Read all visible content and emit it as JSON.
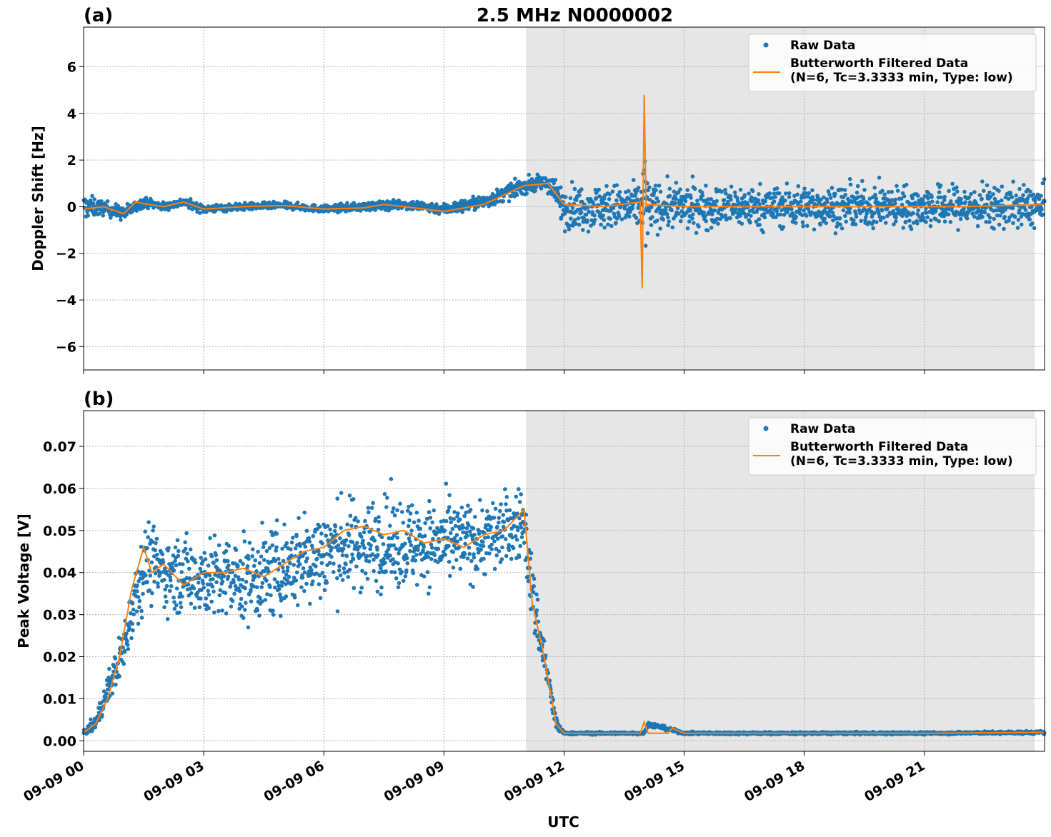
{
  "colors": {
    "raw": "#1f77b4",
    "filtered": "#ff7f0e",
    "shade": "#e6e6e6",
    "grid": "#b0b0b0"
  },
  "xlabel": "UTC",
  "x_range_hours": [
    0,
    24
  ],
  "x_ticks": [
    {
      "hour": 0,
      "label": "09-09 00"
    },
    {
      "hour": 3,
      "label": "09-09 03"
    },
    {
      "hour": 6,
      "label": "09-09 06"
    },
    {
      "hour": 9,
      "label": "09-09 09"
    },
    {
      "hour": 12,
      "label": "09-09 12"
    },
    {
      "hour": 15,
      "label": "09-09 15"
    },
    {
      "hour": 18,
      "label": "09-09 18"
    },
    {
      "hour": 21,
      "label": "09-09 21"
    }
  ],
  "chart_data": [
    {
      "panel_label": "(a)",
      "title": "2.5 MHz N0000002",
      "type": "scatter",
      "ylabel": "Doppler Shift [Hz]",
      "ylim": [
        -7.0,
        7.7
      ],
      "y_ticks": [
        {
          "value": 6,
          "label": "6"
        },
        {
          "value": 4,
          "label": "4"
        },
        {
          "value": 2,
          "label": "2"
        },
        {
          "value": 0,
          "label": "0"
        },
        {
          "value": -2,
          "label": "−2"
        },
        {
          "value": -4,
          "label": "−4"
        },
        {
          "value": -6,
          "label": "−6"
        }
      ],
      "shaded_region_hours": [
        11.05,
        23.75
      ],
      "grid": true,
      "legend_position": "top-right",
      "legend": [
        "Raw Data",
        "Butterworth Filtered Data\n(N=6, Tc=3.3333 min, Type: low)"
      ],
      "series": [
        {
          "name": "Raw Data",
          "style": "points",
          "x_hours": [
            0,
            0.5,
            1.0,
            1.5,
            2.0,
            2.5,
            3.0,
            4.0,
            5.0,
            6.0,
            7.0,
            8.0,
            9.0,
            10.0,
            11.0,
            11.6,
            12.0,
            13.0,
            13.9,
            14.0,
            14.1,
            15.0,
            16.0,
            18.0,
            20.0,
            22.0,
            24.0
          ],
          "y_center": [
            0,
            -0.05,
            -0.3,
            0.2,
            0.0,
            0.2,
            -0.1,
            0.0,
            0.05,
            -0.1,
            0.0,
            0.1,
            -0.1,
            0.2,
            0.9,
            1.0,
            0.0,
            0.0,
            0.0,
            0.0,
            0.0,
            0.0,
            0.0,
            0.0,
            0.0,
            0.0,
            0.0
          ],
          "y_spread": [
            0.9,
            0.5,
            0.5,
            0.35,
            0.3,
            0.3,
            0.3,
            0.25,
            0.25,
            0.25,
            0.3,
            0.35,
            0.4,
            0.5,
            0.55,
            0.6,
            1.5,
            1.6,
            1.6,
            6.7,
            1.6,
            1.6,
            1.5,
            1.5,
            1.5,
            1.5,
            1.5
          ]
        },
        {
          "name": "Butterworth Filtered Data (N=6, Tc=3.3333 min, Type: low)",
          "style": "line",
          "x_hours": [
            0,
            0.5,
            1.0,
            1.3,
            1.6,
            2.0,
            2.5,
            3.0,
            4.0,
            5.0,
            6.0,
            7.0,
            7.5,
            8.0,
            9.0,
            10.0,
            10.5,
            11.0,
            11.6,
            12.0,
            13.0,
            13.9,
            13.95,
            14.0,
            14.05,
            14.1,
            15.0,
            16.0,
            18.0,
            20.0,
            22.0,
            24.0
          ],
          "y": [
            -0.1,
            0.0,
            -0.3,
            0.2,
            0.1,
            0.0,
            0.2,
            -0.1,
            0.0,
            0.05,
            -0.1,
            -0.05,
            0.1,
            0.0,
            -0.2,
            0.1,
            0.5,
            0.9,
            1.0,
            0.1,
            0.0,
            0.2,
            -3.5,
            4.8,
            0.0,
            0.1,
            0.0,
            0.0,
            0.0,
            0.0,
            0.0,
            0.1
          ]
        }
      ]
    },
    {
      "panel_label": "(b)",
      "title": "",
      "type": "scatter",
      "ylabel": "Peak Voltage [V]",
      "ylim": [
        -0.0025,
        0.0785
      ],
      "y_ticks": [
        {
          "value": 0.07,
          "label": "0.07"
        },
        {
          "value": 0.06,
          "label": "0.06"
        },
        {
          "value": 0.05,
          "label": "0.05"
        },
        {
          "value": 0.04,
          "label": "0.04"
        },
        {
          "value": 0.03,
          "label": "0.03"
        },
        {
          "value": 0.02,
          "label": "0.02"
        },
        {
          "value": 0.01,
          "label": "0.01"
        },
        {
          "value": 0.0,
          "label": "0.00"
        }
      ],
      "shaded_region_hours": [
        11.05,
        23.75
      ],
      "grid": true,
      "legend_position": "top-right",
      "legend": [
        "Raw Data",
        "Butterworth Filtered Data\n(N=6, Tc=3.3333 min, Type: low)"
      ],
      "series": [
        {
          "name": "Raw Data",
          "style": "points",
          "x_hours": [
            0,
            0.3,
            0.6,
            1.0,
            1.3,
            1.6,
            2.0,
            3.0,
            4.0,
            5.0,
            6.0,
            7.0,
            8.0,
            9.0,
            10.0,
            11.0,
            11.2,
            11.5,
            11.8,
            12.0,
            13.0,
            14.0,
            14.1,
            15.0,
            18.0,
            21.0,
            24.0
          ],
          "y_center": [
            0.002,
            0.004,
            0.012,
            0.022,
            0.036,
            0.043,
            0.04,
            0.039,
            0.038,
            0.041,
            0.045,
            0.047,
            0.047,
            0.047,
            0.048,
            0.052,
            0.035,
            0.02,
            0.004,
            0.0018,
            0.0018,
            0.0018,
            0.004,
            0.0018,
            0.0018,
            0.0018,
            0.002
          ],
          "y_spread": [
            0.001,
            0.003,
            0.006,
            0.01,
            0.014,
            0.016,
            0.014,
            0.016,
            0.017,
            0.018,
            0.019,
            0.018,
            0.018,
            0.016,
            0.015,
            0.014,
            0.014,
            0.009,
            0.003,
            0.0005,
            0.0005,
            0.0005,
            0.001,
            0.0005,
            0.0005,
            0.0005,
            0.0006
          ]
        },
        {
          "name": "Butterworth Filtered Data (N=6, Tc=3.3333 min, Type: low)",
          "style": "line",
          "x_hours": [
            0,
            0.3,
            0.6,
            0.9,
            1.2,
            1.5,
            1.7,
            2.0,
            2.5,
            3.0,
            3.5,
            4.0,
            4.5,
            5.0,
            5.5,
            6.0,
            6.5,
            7.0,
            7.5,
            8.0,
            8.5,
            9.0,
            9.5,
            10.0,
            10.5,
            11.0,
            11.2,
            11.5,
            11.8,
            12.0,
            13.0,
            13.9,
            14.0,
            14.1,
            14.6,
            14.7,
            15.0,
            18.0,
            21.0,
            24.0
          ],
          "y": [
            0.002,
            0.004,
            0.01,
            0.02,
            0.036,
            0.046,
            0.04,
            0.042,
            0.037,
            0.04,
            0.04,
            0.041,
            0.039,
            0.042,
            0.045,
            0.046,
            0.05,
            0.051,
            0.049,
            0.05,
            0.047,
            0.048,
            0.046,
            0.049,
            0.05,
            0.055,
            0.033,
            0.02,
            0.004,
            0.0018,
            0.0018,
            0.0018,
            0.0045,
            0.0018,
            0.0018,
            0.003,
            0.0018,
            0.0018,
            0.0018,
            0.002
          ]
        }
      ]
    }
  ]
}
